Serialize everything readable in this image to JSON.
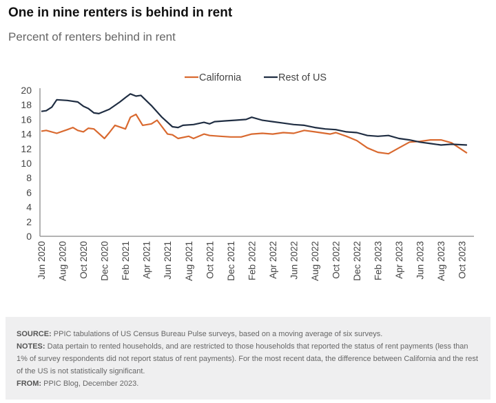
{
  "chart_data": {
    "type": "line",
    "title": "One in nine renters is behind in rent",
    "subtitle": "Percent of renters behind in rent",
    "xlabel": "",
    "ylabel": "",
    "ylim": [
      0,
      20
    ],
    "y_ticks": [
      "0",
      "2",
      "4",
      "6",
      "8",
      "10",
      "12",
      "14",
      "16",
      "18",
      "20"
    ],
    "x_tick_labels": [
      "Jun 2020",
      "Aug 2020",
      "Oct 2020",
      "Dec 2020",
      "Feb 2021",
      "Apr 2021",
      "Jun 2021",
      "Aug 2021",
      "Oct 2021",
      "Dec 2021",
      "Feb 2022",
      "Apr 2022",
      "Jun 2022",
      "Aug 2022",
      "Oct 2022",
      "Dec 2022",
      "Feb 2023",
      "Apr 2023",
      "Jun 2023",
      "Aug 2023",
      "Oct 2023"
    ],
    "grid": false,
    "legend_placement": "top-center",
    "series": [
      {
        "name": "California",
        "color": "#d9692f",
        "points": [
          [
            "2020-06-01",
            14.4
          ],
          [
            "2020-06-15",
            14.5
          ],
          [
            "2020-07-15",
            14.1
          ],
          [
            "2020-08-15",
            14.6
          ],
          [
            "2020-09-01",
            14.9
          ],
          [
            "2020-09-15",
            14.5
          ],
          [
            "2020-10-01",
            14.3
          ],
          [
            "2020-10-15",
            14.8
          ],
          [
            "2020-11-01",
            14.7
          ],
          [
            "2020-12-01",
            13.4
          ],
          [
            "2020-12-15",
            14.2
          ],
          [
            "2021-01-01",
            15.2
          ],
          [
            "2021-02-01",
            14.7
          ],
          [
            "2021-02-15",
            16.3
          ],
          [
            "2021-03-01",
            16.7
          ],
          [
            "2021-03-20",
            15.2
          ],
          [
            "2021-04-15",
            15.4
          ],
          [
            "2021-05-01",
            15.9
          ],
          [
            "2021-06-01",
            14.0
          ],
          [
            "2021-06-15",
            13.9
          ],
          [
            "2021-07-01",
            13.4
          ],
          [
            "2021-08-01",
            13.7
          ],
          [
            "2021-08-15",
            13.4
          ],
          [
            "2021-09-15",
            14.0
          ],
          [
            "2021-10-01",
            13.8
          ],
          [
            "2021-11-01",
            13.7
          ],
          [
            "2021-12-01",
            13.6
          ],
          [
            "2022-01-01",
            13.6
          ],
          [
            "2022-02-01",
            14.0
          ],
          [
            "2022-03-01",
            14.1
          ],
          [
            "2022-04-01",
            14.0
          ],
          [
            "2022-05-01",
            14.2
          ],
          [
            "2022-06-01",
            14.1
          ],
          [
            "2022-07-01",
            14.5
          ],
          [
            "2022-08-01",
            14.3
          ],
          [
            "2022-09-15",
            14.0
          ],
          [
            "2022-10-01",
            14.2
          ],
          [
            "2022-11-01",
            13.7
          ],
          [
            "2022-12-01",
            13.1
          ],
          [
            "2023-01-01",
            12.1
          ],
          [
            "2023-02-01",
            11.5
          ],
          [
            "2023-03-01",
            11.3
          ],
          [
            "2023-04-01",
            12.1
          ],
          [
            "2023-05-01",
            12.9
          ],
          [
            "2023-06-01",
            13.0
          ],
          [
            "2023-07-01",
            13.2
          ],
          [
            "2023-08-01",
            13.2
          ],
          [
            "2023-09-01",
            12.8
          ],
          [
            "2023-10-15",
            11.4
          ]
        ]
      },
      {
        "name": "Rest of US",
        "color": "#1f2d42",
        "points": [
          [
            "2020-06-01",
            17.1
          ],
          [
            "2020-06-15",
            17.2
          ],
          [
            "2020-07-01",
            17.7
          ],
          [
            "2020-07-15",
            18.7
          ],
          [
            "2020-08-15",
            18.6
          ],
          [
            "2020-09-15",
            18.4
          ],
          [
            "2020-10-01",
            17.8
          ],
          [
            "2020-10-15",
            17.5
          ],
          [
            "2020-11-01",
            16.9
          ],
          [
            "2020-11-15",
            16.8
          ],
          [
            "2020-12-15",
            17.4
          ],
          [
            "2021-01-15",
            18.4
          ],
          [
            "2021-02-01",
            19.0
          ],
          [
            "2021-02-15",
            19.5
          ],
          [
            "2021-03-01",
            19.2
          ],
          [
            "2021-03-15",
            19.3
          ],
          [
            "2021-04-15",
            17.9
          ],
          [
            "2021-05-15",
            16.3
          ],
          [
            "2021-06-15",
            15.0
          ],
          [
            "2021-07-01",
            14.9
          ],
          [
            "2021-07-15",
            15.2
          ],
          [
            "2021-08-15",
            15.3
          ],
          [
            "2021-09-15",
            15.6
          ],
          [
            "2021-10-01",
            15.4
          ],
          [
            "2021-10-15",
            15.7
          ],
          [
            "2021-11-15",
            15.8
          ],
          [
            "2021-12-15",
            15.9
          ],
          [
            "2022-01-15",
            16.0
          ],
          [
            "2022-02-01",
            16.3
          ],
          [
            "2022-03-01",
            15.9
          ],
          [
            "2022-04-01",
            15.7
          ],
          [
            "2022-05-01",
            15.5
          ],
          [
            "2022-06-01",
            15.3
          ],
          [
            "2022-07-01",
            15.2
          ],
          [
            "2022-08-01",
            14.9
          ],
          [
            "2022-09-01",
            14.7
          ],
          [
            "2022-10-01",
            14.6
          ],
          [
            "2022-11-01",
            14.3
          ],
          [
            "2022-12-01",
            14.2
          ],
          [
            "2023-01-01",
            13.8
          ],
          [
            "2023-02-01",
            13.7
          ],
          [
            "2023-03-01",
            13.8
          ],
          [
            "2023-04-01",
            13.4
          ],
          [
            "2023-05-01",
            13.2
          ],
          [
            "2023-06-01",
            12.9
          ],
          [
            "2023-07-01",
            12.7
          ],
          [
            "2023-08-01",
            12.5
          ],
          [
            "2023-09-01",
            12.6
          ],
          [
            "2023-10-15",
            12.5
          ]
        ]
      }
    ]
  },
  "footer": {
    "source_label": "SOURCE:",
    "source_text": " PPIC tabulations of US Census Bureau Pulse surveys, based on a moving average of six surveys.",
    "notes_label": "NOTES:",
    "notes_text": " Data pertain to rented households, and are restricted to those households that reported the status of rent payments (less than 1% of survey respondents did not report status of rent payments). For the most recent data, the difference between California and the rest of the US is not statistically significant.",
    "from_label": "FROM:",
    "from_text": " PPIC Blog, December 2023."
  }
}
